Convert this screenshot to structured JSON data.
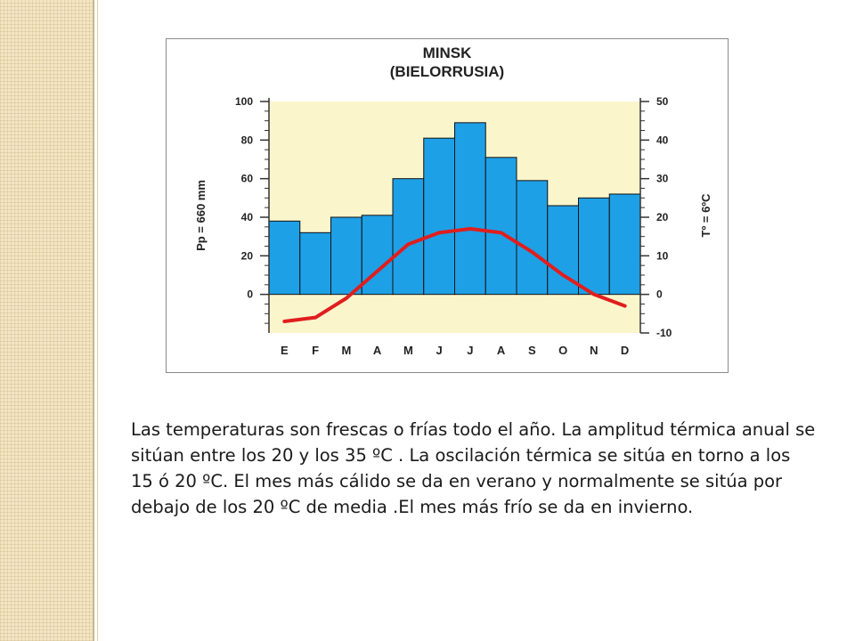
{
  "chart_data": {
    "type": "bar+line",
    "title": "MINSK",
    "subtitle": "(BIELORRUSIA)",
    "ylabel_left": "Pp = 660 mm",
    "ylabel_right": "Tº = 6ºC",
    "categories": [
      "E",
      "F",
      "M",
      "A",
      "M",
      "J",
      "J",
      "A",
      "S",
      "O",
      "N",
      "D"
    ],
    "precipitation": [
      38,
      32,
      40,
      41,
      60,
      81,
      89,
      71,
      59,
      46,
      50,
      52
    ],
    "temperature": [
      -7,
      -6,
      -1,
      6,
      13,
      16,
      17,
      16,
      11,
      5,
      0,
      -3
    ],
    "ylim_left": [
      -20,
      100
    ],
    "yticks_left": [
      "100",
      "80",
      "60",
      "40",
      "20",
      "0"
    ],
    "yticks_left_values": [
      100,
      80,
      60,
      40,
      20,
      0
    ],
    "ylim_right": [
      -10,
      50
    ],
    "yticks_right": [
      "50",
      "40",
      "30",
      "20",
      "10",
      "0",
      "-10"
    ],
    "yticks_right_values": [
      50,
      40,
      30,
      20,
      10,
      0,
      -10
    ],
    "bar_color": "#1ea0e6",
    "line_color": "#e01e1e",
    "plot_background": "#fbf5cc",
    "grid": false,
    "legend": "none"
  },
  "text": {
    "caption": "Las temperaturas son frescas o frías todo el año. La amplitud térmica anual se sitúan entre los 20 y los 35 ºC . La oscilación térmica se sitúa en torno a los 15 ó 20 ºC. El mes más cálido se da en verano y normalmente se sitúa por debajo de los 20 ºC de media .El mes más frío se da en invierno."
  }
}
